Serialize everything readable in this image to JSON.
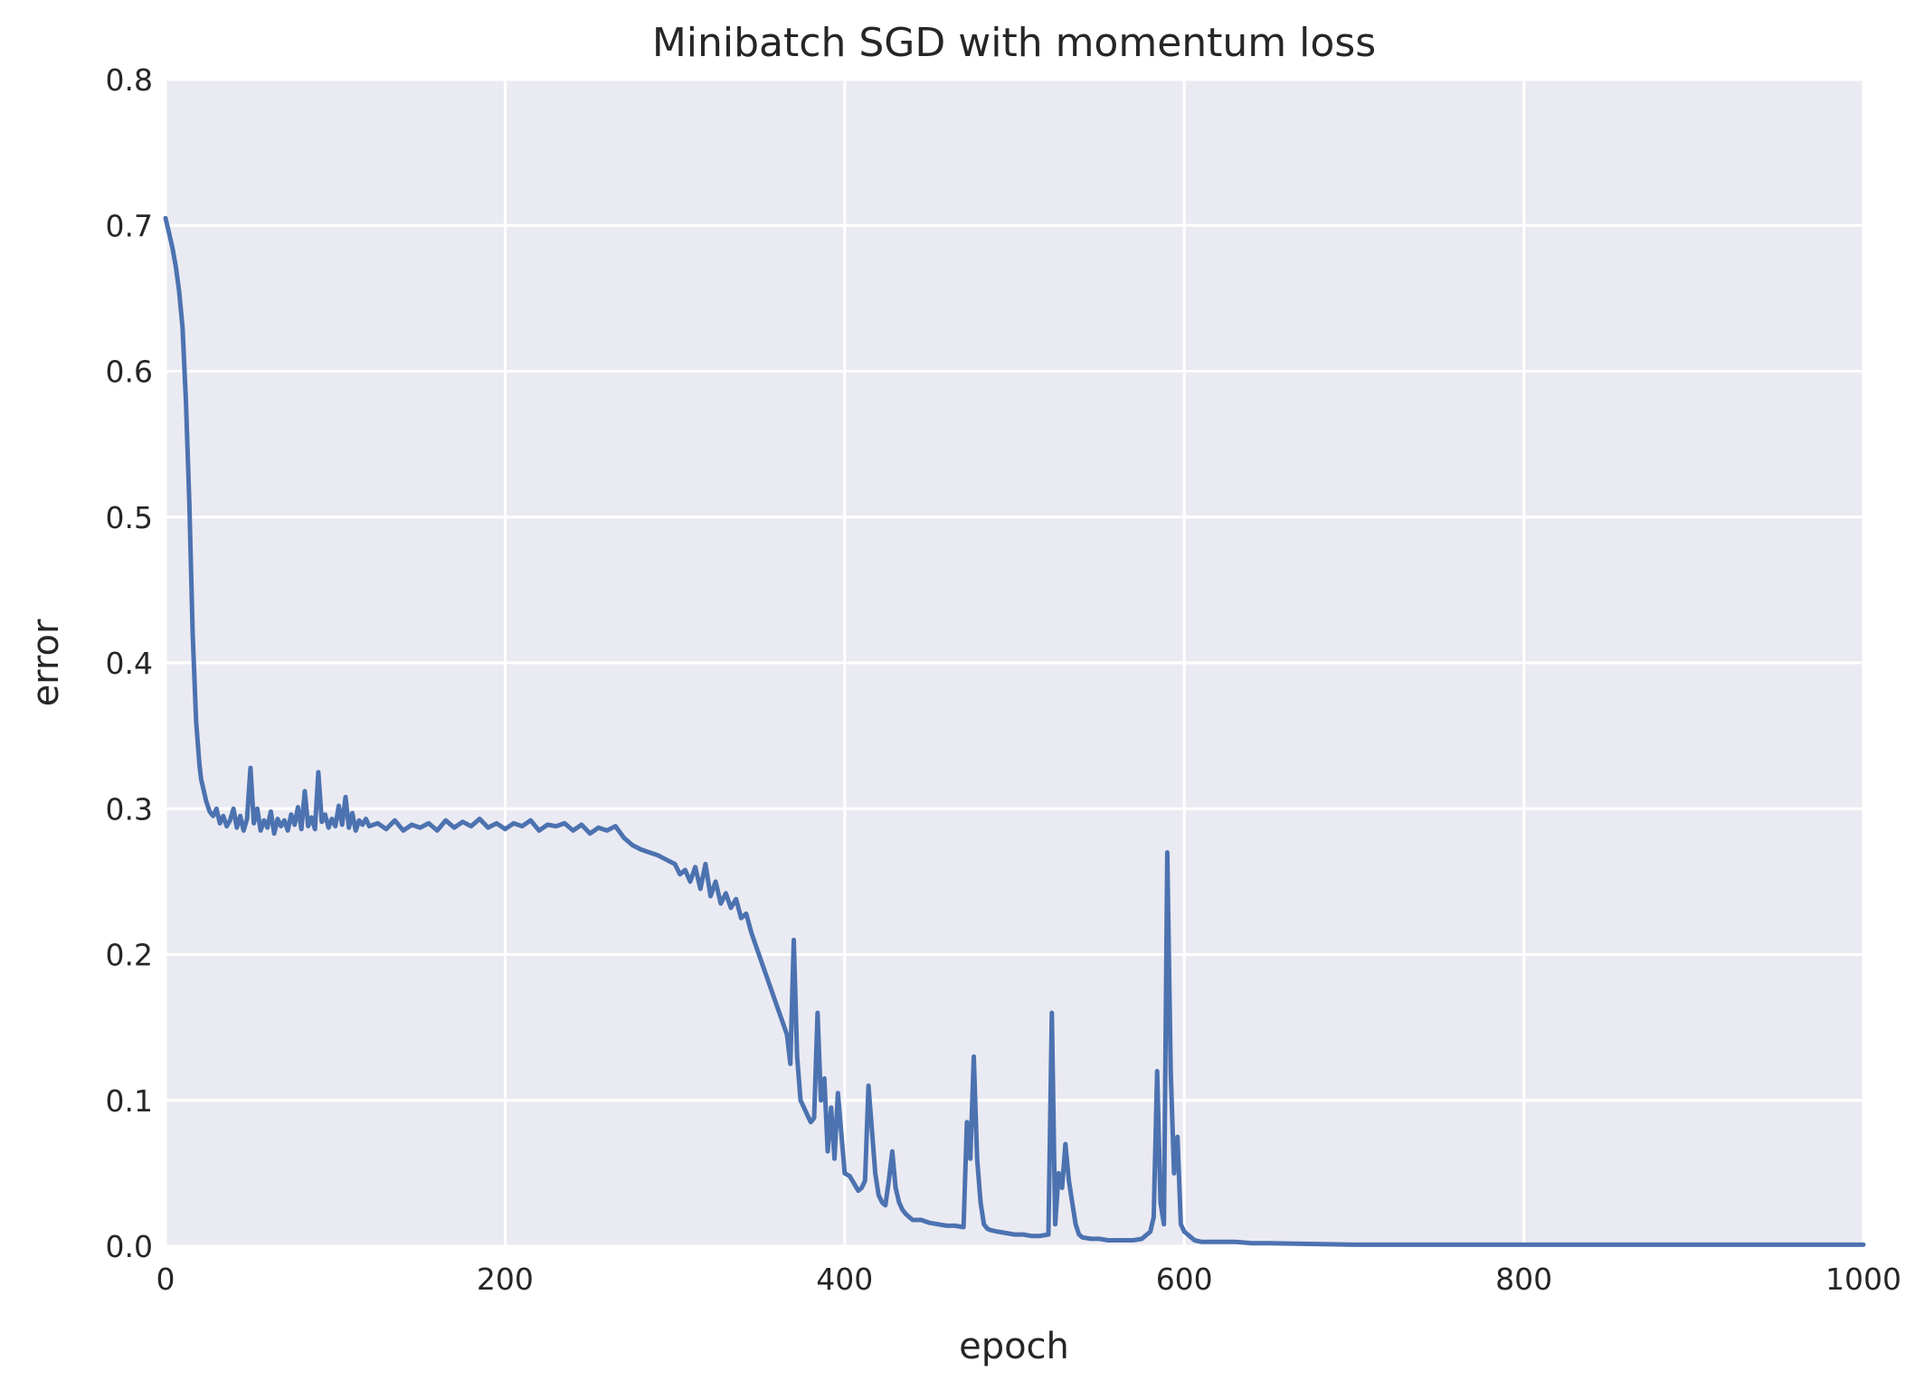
{
  "chart_data": {
    "type": "line",
    "title": "Minibatch SGD with momentum loss",
    "xlabel": "epoch",
    "ylabel": "error",
    "xlim": [
      0,
      1000
    ],
    "ylim": [
      0.0,
      0.8
    ],
    "grid": true,
    "colors": {
      "background": "#eaeaf2",
      "grid": "#ffffff",
      "line": "#4c72b0"
    },
    "x_ticks": [
      {
        "value": 0,
        "label": "0"
      },
      {
        "value": 200,
        "label": "200"
      },
      {
        "value": 400,
        "label": "400"
      },
      {
        "value": 600,
        "label": "600"
      },
      {
        "value": 800,
        "label": "800"
      },
      {
        "value": 1000,
        "label": "1000"
      }
    ],
    "y_ticks": [
      {
        "value": 0.0,
        "label": "0.0"
      },
      {
        "value": 0.1,
        "label": "0.1"
      },
      {
        "value": 0.2,
        "label": "0.2"
      },
      {
        "value": 0.3,
        "label": "0.3"
      },
      {
        "value": 0.4,
        "label": "0.4"
      },
      {
        "value": 0.5,
        "label": "0.5"
      },
      {
        "value": 0.6,
        "label": "0.6"
      },
      {
        "value": 0.7,
        "label": "0.7"
      },
      {
        "value": 0.8,
        "label": "0.8"
      }
    ],
    "series": [
      {
        "x": [
          0,
          2,
          4,
          6,
          8,
          10,
          12,
          14,
          16,
          18,
          20,
          21,
          22,
          24,
          26,
          28,
          30,
          32,
          34,
          36,
          38,
          40,
          42,
          44,
          46,
          48,
          50,
          52,
          54,
          56,
          58,
          60,
          62,
          64,
          66,
          68,
          70,
          72,
          74,
          76,
          78,
          80,
          82,
          84,
          86,
          88,
          90,
          92,
          94,
          96,
          98,
          100,
          102,
          104,
          106,
          108,
          110,
          112,
          114,
          116,
          118,
          120,
          125,
          130,
          135,
          140,
          145,
          150,
          155,
          160,
          165,
          170,
          175,
          180,
          185,
          190,
          195,
          200,
          205,
          210,
          215,
          220,
          225,
          230,
          235,
          240,
          245,
          250,
          255,
          260,
          265,
          270,
          275,
          280,
          285,
          290,
          295,
          300,
          303,
          306,
          309,
          312,
          315,
          318,
          321,
          324,
          327,
          330,
          333,
          336,
          339,
          342,
          345,
          348,
          351,
          354,
          357,
          360,
          363,
          366,
          368,
          370,
          372,
          374,
          376,
          378,
          380,
          382,
          384,
          386,
          388,
          390,
          392,
          394,
          396,
          400,
          403,
          406,
          408,
          410,
          412,
          414,
          418,
          420,
          422,
          424,
          426,
          428,
          430,
          432,
          434,
          436,
          438,
          440,
          445,
          450,
          455,
          460,
          465,
          470,
          472,
          474,
          476,
          478,
          480,
          482,
          484,
          486,
          490,
          495,
          500,
          505,
          510,
          515,
          520,
          522,
          524,
          526,
          528,
          530,
          532,
          534,
          536,
          538,
          540,
          545,
          550,
          555,
          560,
          565,
          570,
          575,
          580,
          582,
          584,
          586,
          588,
          590,
          592,
          594,
          596,
          598,
          600,
          602,
          604,
          606,
          610,
          620,
          630,
          640,
          650,
          700,
          800,
          900,
          1000
        ],
        "values": [
          0.705,
          0.695,
          0.685,
          0.672,
          0.655,
          0.63,
          0.58,
          0.51,
          0.42,
          0.36,
          0.33,
          0.32,
          0.315,
          0.305,
          0.298,
          0.295,
          0.3,
          0.29,
          0.295,
          0.288,
          0.292,
          0.3,
          0.287,
          0.295,
          0.285,
          0.293,
          0.328,
          0.29,
          0.3,
          0.285,
          0.292,
          0.287,
          0.298,
          0.283,
          0.293,
          0.288,
          0.292,
          0.285,
          0.296,
          0.289,
          0.301,
          0.286,
          0.312,
          0.288,
          0.294,
          0.286,
          0.325,
          0.291,
          0.296,
          0.287,
          0.293,
          0.288,
          0.302,
          0.289,
          0.308,
          0.287,
          0.297,
          0.285,
          0.292,
          0.289,
          0.293,
          0.288,
          0.29,
          0.286,
          0.292,
          0.285,
          0.289,
          0.287,
          0.29,
          0.285,
          0.292,
          0.287,
          0.291,
          0.288,
          0.293,
          0.287,
          0.29,
          0.286,
          0.29,
          0.288,
          0.292,
          0.285,
          0.289,
          0.288,
          0.29,
          0.285,
          0.289,
          0.283,
          0.287,
          0.285,
          0.288,
          0.28,
          0.275,
          0.272,
          0.27,
          0.268,
          0.265,
          0.262,
          0.255,
          0.258,
          0.25,
          0.26,
          0.245,
          0.262,
          0.24,
          0.25,
          0.235,
          0.242,
          0.232,
          0.238,
          0.225,
          0.228,
          0.215,
          0.205,
          0.195,
          0.185,
          0.175,
          0.165,
          0.155,
          0.145,
          0.125,
          0.21,
          0.13,
          0.1,
          0.095,
          0.09,
          0.085,
          0.088,
          0.16,
          0.1,
          0.115,
          0.065,
          0.095,
          0.06,
          0.105,
          0.05,
          0.048,
          0.042,
          0.038,
          0.04,
          0.045,
          0.11,
          0.05,
          0.035,
          0.03,
          0.028,
          0.045,
          0.065,
          0.04,
          0.03,
          0.025,
          0.022,
          0.02,
          0.018,
          0.018,
          0.016,
          0.015,
          0.014,
          0.014,
          0.013,
          0.085,
          0.06,
          0.13,
          0.06,
          0.03,
          0.015,
          0.012,
          0.011,
          0.01,
          0.009,
          0.008,
          0.008,
          0.007,
          0.007,
          0.008,
          0.16,
          0.015,
          0.05,
          0.04,
          0.07,
          0.045,
          0.03,
          0.015,
          0.008,
          0.006,
          0.005,
          0.005,
          0.004,
          0.004,
          0.004,
          0.004,
          0.005,
          0.01,
          0.02,
          0.12,
          0.03,
          0.015,
          0.27,
          0.12,
          0.05,
          0.075,
          0.015,
          0.01,
          0.008,
          0.006,
          0.004,
          0.003,
          0.003,
          0.003,
          0.002,
          0.002,
          0.001,
          0.001,
          0.001,
          0.001
        ]
      }
    ]
  }
}
